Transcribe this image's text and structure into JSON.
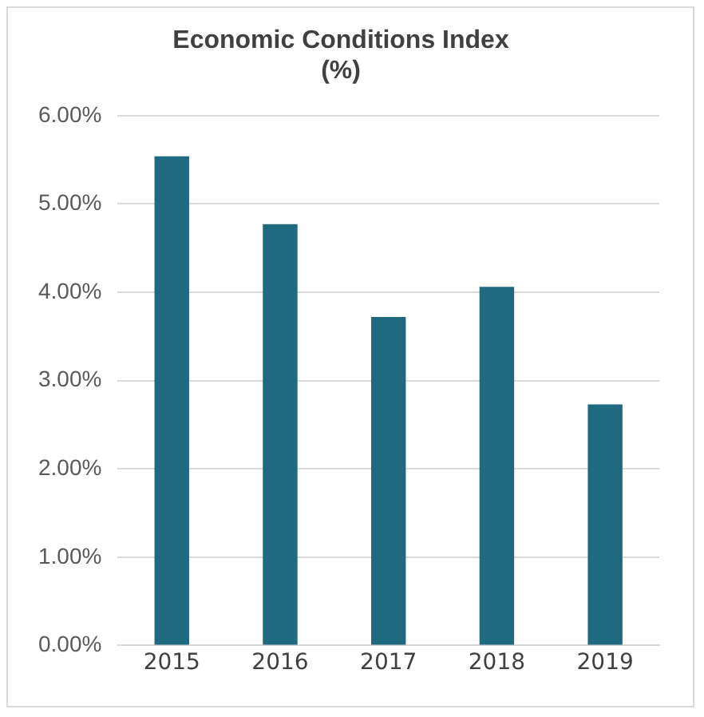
{
  "chart_data": {
    "type": "bar",
    "title": "Economic Conditions Index\n(%)",
    "categories": [
      "2015",
      "2016",
      "2017",
      "2018",
      "2019"
    ],
    "values": [
      5.54,
      4.77,
      3.72,
      4.06,
      2.73
    ],
    "color": "#1f6a80",
    "ylim": [
      0,
      6
    ],
    "yticks": [
      {
        "value": 0,
        "label": "0.00%"
      },
      {
        "value": 1,
        "label": "1.00%"
      },
      {
        "value": 2,
        "label": "2.00%"
      },
      {
        "value": 3,
        "label": "3.00%"
      },
      {
        "value": 4,
        "label": "4.00%"
      },
      {
        "value": 5,
        "label": "5.00%"
      },
      {
        "value": 6,
        "label": "6.00%"
      }
    ],
    "grid": "y",
    "legend": false
  }
}
